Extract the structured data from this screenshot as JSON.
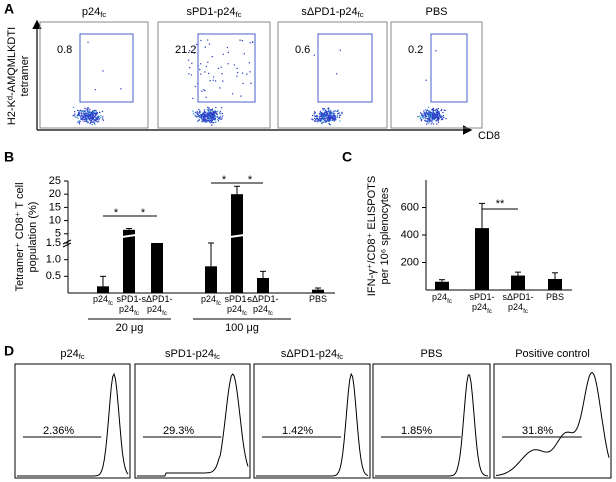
{
  "panel_labels": [
    "A",
    "B",
    "C",
    "D"
  ],
  "panel_a": {
    "y_label": [
      "H2-Kᵈ-AMQMLKDTI",
      "tetramer"
    ],
    "x_label": "CD8",
    "plots": [
      {
        "title": "p24fc",
        "value": 0.8
      },
      {
        "title": "sPD1-p24fc",
        "value": 21.2
      },
      {
        "title": "sΔPD1-p24fc",
        "value": 0.6
      },
      {
        "title": "PBS",
        "value": 0.2
      }
    ]
  },
  "chart_data": [
    {
      "type": "bar",
      "y_label": [
        "Tetramer⁺ CD8⁺ T cell",
        "population (%)"
      ],
      "categories": [
        "p24fc",
        "sPD1-p24fc",
        "sΔPD1-p24fc",
        "p24fc",
        "sPD1-p24fc",
        "sΔPD1-p24fc",
        "PBS"
      ],
      "values": [
        0.2,
        6.5,
        1.5,
        0.8,
        20,
        0.45,
        0.1
      ],
      "errors": [
        0.3,
        0.5,
        null,
        0.7,
        3,
        0.2,
        0.05
      ],
      "y_segments": [
        [
          0,
          1.5
        ],
        [
          1.5,
          25
        ]
      ],
      "yticks": [
        0.5,
        {
          "value": 1,
          "label": "1.0"
        },
        1.5,
        5,
        10,
        15,
        20,
        25
      ],
      "group_labels": [
        "20 μg",
        "100 μg"
      ],
      "annotations": [
        "*",
        "*",
        "*",
        "*"
      ],
      "color": "#000000"
    },
    {
      "type": "bar",
      "y_label": [
        "IFN-γ⁺/CD8⁺ ELISPOTS",
        "per 10⁶ splenocytes"
      ],
      "categories": [
        "p24fc",
        "sPD1-p24fc",
        "sΔPD1-p24fc",
        "PBS"
      ],
      "values": [
        60,
        450,
        105,
        80
      ],
      "errors": [
        15,
        180,
        25,
        45
      ],
      "ylim": [
        0,
        800
      ],
      "yticks": [
        200,
        400,
        600
      ],
      "annotations": [
        "**"
      ],
      "color": "#000000"
    }
  ],
  "panel_d": {
    "plots": [
      {
        "title": "p24fc",
        "label": "2.36%"
      },
      {
        "title": "sPD1-p24fc",
        "label": "29.3%"
      },
      {
        "title": "sΔPD1-p24fc",
        "label": "1.42%"
      },
      {
        "title": "PBS",
        "label": "1.85%"
      },
      {
        "title": "Positive control",
        "label": "31.8%"
      }
    ]
  }
}
